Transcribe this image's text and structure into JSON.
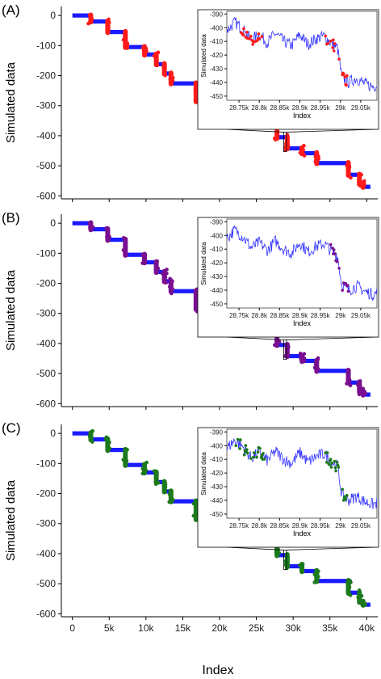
{
  "figure": {
    "xlabel": "Index",
    "x_ticks": [
      0,
      5000,
      10000,
      15000,
      20000,
      25000,
      30000,
      35000,
      40000
    ],
    "x_tick_labels": [
      "0",
      "5k",
      "10k",
      "15k",
      "20k",
      "25k",
      "30k",
      "35k",
      "40k"
    ]
  },
  "colors": {
    "base": "#1a1aff",
    "inset_line": "#3333ff",
    "panel_a_highlight": "#ff1a1a",
    "panel_b_highlight": "#7a0f8f",
    "panel_c_highlight": "#1c7a1c"
  },
  "chart_data": [
    {
      "type": "scatter",
      "panel_label": "(A)",
      "ylabel": "Simulated data",
      "xlim": [
        -1500,
        41500
      ],
      "ylim": [
        -610,
        30
      ],
      "y_ticks": [
        0,
        -100,
        -200,
        -300,
        -400,
        -500,
        -600
      ],
      "highlight_color": "panel_a_highlight",
      "steps": [
        [
          0,
          0
        ],
        [
          2500,
          -20
        ],
        [
          4800,
          -55
        ],
        [
          7200,
          -105
        ],
        [
          9800,
          -130
        ],
        [
          11400,
          -162
        ],
        [
          12500,
          -193
        ],
        [
          13400,
          -226
        ],
        [
          16800,
          -285
        ],
        [
          19800,
          -305
        ],
        [
          21000,
          -345
        ],
        [
          24000,
          -350
        ],
        [
          25800,
          -365
        ],
        [
          27800,
          -405
        ],
        [
          29200,
          -442
        ],
        [
          31200,
          -458
        ],
        [
          33200,
          -491
        ],
        [
          37500,
          -530
        ],
        [
          39000,
          -560
        ],
        [
          39500,
          -570
        ]
      ],
      "inset": {
        "xlim": [
          28720,
          29090
        ],
        "ylim": [
          -453,
          -388
        ],
        "y_ticks": [
          -390,
          -400,
          -410,
          -420,
          -430,
          -440,
          -450
        ],
        "x_ticks": [
          28750,
          28800,
          28850,
          28900,
          28950,
          29000,
          29050
        ],
        "x_tick_labels": [
          "28.75k",
          "28.8k",
          "28.85k",
          "28.9k",
          "28.95k",
          "29k",
          "29.05k"
        ],
        "xlabel": "Index",
        "ylabel": "Simulated data",
        "series": [
          {
            "x": [
              28720,
              28740,
              28760,
              28780,
              28800,
              28820,
              28840,
              28860,
              28880,
              28900,
              28920,
              28940,
              28960,
              28980,
              28993,
              29003,
              29020,
              29040,
              29060,
              29080,
              29090
            ],
            "y": [
              -402,
              -396,
              -401,
              -409,
              -405,
              -411,
              -404,
              -410,
              -413,
              -405,
              -412,
              -408,
              -406,
              -412,
              -415,
              -436,
              -440,
              -437,
              -441,
              -443,
              -442
            ]
          }
        ],
        "highlight_ranges": [
          [
            28755,
            28815
          ],
          [
            28960,
            28998
          ],
          [
            29002,
            29020
          ]
        ]
      }
    },
    {
      "type": "scatter",
      "panel_label": "(B)",
      "ylabel": "Simulated data",
      "xlim": [
        -1500,
        41500
      ],
      "ylim": [
        -610,
        30
      ],
      "y_ticks": [
        0,
        -100,
        -200,
        -300,
        -400,
        -500,
        -600
      ],
      "highlight_color": "panel_b_highlight",
      "steps": [
        [
          0,
          0
        ],
        [
          2500,
          -20
        ],
        [
          4800,
          -55
        ],
        [
          7200,
          -105
        ],
        [
          9800,
          -130
        ],
        [
          11400,
          -162
        ],
        [
          12500,
          -193
        ],
        [
          13400,
          -226
        ],
        [
          16800,
          -285
        ],
        [
          19800,
          -305
        ],
        [
          21000,
          -345
        ],
        [
          24000,
          -350
        ],
        [
          25800,
          -365
        ],
        [
          27800,
          -405
        ],
        [
          29200,
          -442
        ],
        [
          31200,
          -458
        ],
        [
          33200,
          -491
        ],
        [
          37500,
          -530
        ],
        [
          39000,
          -560
        ],
        [
          39500,
          -570
        ]
      ],
      "inset": {
        "xlim": [
          28720,
          29090
        ],
        "ylim": [
          -453,
          -388
        ],
        "y_ticks": [
          -390,
          -400,
          -410,
          -420,
          -430,
          -440,
          -450
        ],
        "x_ticks": [
          28750,
          28800,
          28850,
          28900,
          28950,
          29000,
          29050
        ],
        "x_tick_labels": [
          "28.75k",
          "28.8k",
          "28.85k",
          "28.9k",
          "28.95k",
          "29k",
          "29.05k"
        ],
        "xlabel": "Index",
        "ylabel": "Simulated data",
        "series": [
          {
            "x": [
              28720,
              28740,
              28760,
              28780,
              28800,
              28820,
              28840,
              28860,
              28880,
              28900,
              28920,
              28940,
              28960,
              28980,
              28993,
              29003,
              29020,
              29040,
              29060,
              29080,
              29090
            ],
            "y": [
              -402,
              -396,
              -401,
              -409,
              -405,
              -411,
              -404,
              -410,
              -413,
              -405,
              -412,
              -408,
              -406,
              -412,
              -415,
              -436,
              -440,
              -437,
              -441,
              -443,
              -442
            ]
          }
        ],
        "highlight_ranges": [
          [
            28975,
            28998
          ],
          [
            29002,
            29022
          ]
        ]
      }
    },
    {
      "type": "scatter",
      "panel_label": "(C)",
      "ylabel": "Simulated data",
      "xlim": [
        -1500,
        41500
      ],
      "ylim": [
        -610,
        30
      ],
      "y_ticks": [
        0,
        -100,
        -200,
        -300,
        -400,
        -500,
        -600
      ],
      "highlight_color": "panel_c_highlight",
      "steps": [
        [
          0,
          0
        ],
        [
          2500,
          -20
        ],
        [
          4800,
          -55
        ],
        [
          7200,
          -105
        ],
        [
          9800,
          -130
        ],
        [
          11400,
          -162
        ],
        [
          12500,
          -193
        ],
        [
          13400,
          -226
        ],
        [
          16800,
          -285
        ],
        [
          19800,
          -305
        ],
        [
          21000,
          -345
        ],
        [
          24000,
          -350
        ],
        [
          25800,
          -365
        ],
        [
          27800,
          -405
        ],
        [
          29200,
          -442
        ],
        [
          31200,
          -458
        ],
        [
          33200,
          -491
        ],
        [
          37500,
          -530
        ],
        [
          39000,
          -560
        ],
        [
          39500,
          -570
        ]
      ],
      "inset": {
        "xlim": [
          28720,
          29090
        ],
        "ylim": [
          -453,
          -388
        ],
        "y_ticks": [
          -390,
          -400,
          -410,
          -420,
          -430,
          -440,
          -450
        ],
        "x_ticks": [
          28750,
          28800,
          28850,
          28900,
          28950,
          29000,
          29050
        ],
        "x_tick_labels": [
          "28.75k",
          "28.8k",
          "28.85k",
          "28.9k",
          "28.95k",
          "29k",
          "29.05k"
        ],
        "xlabel": "Index",
        "ylabel": "Simulated data",
        "series": [
          {
            "x": [
              28720,
              28740,
              28760,
              28780,
              28800,
              28820,
              28840,
              28860,
              28880,
              28900,
              28920,
              28940,
              28960,
              28980,
              28993,
              29003,
              29020,
              29040,
              29060,
              29080,
              29090
            ],
            "y": [
              -402,
              -396,
              -401,
              -409,
              -405,
              -411,
              -404,
              -410,
              -413,
              -405,
              -412,
              -408,
              -406,
              -412,
              -415,
              -436,
              -440,
              -437,
              -441,
              -443,
              -442
            ]
          }
        ],
        "highlight_ranges": [
          [
            28740,
            28815
          ],
          [
            28960,
            28998
          ],
          [
            29002,
            29022
          ]
        ]
      }
    }
  ]
}
